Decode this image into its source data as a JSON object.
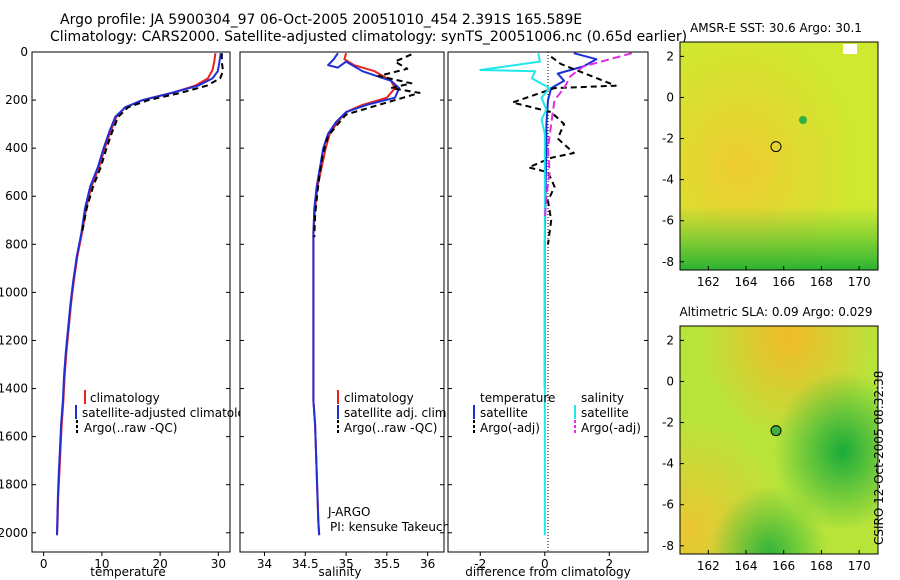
{
  "title_line1": "Argo profile: JA 5900304_97 06-Oct-2005 20051010_454 2.391S 165.589E",
  "title_line2": "Climatology: CARS2000. Satellite-adjusted climatology: synTS_20051006.nc (0.65d earlier)",
  "stamp": "CSIRO 12-Oct-2005 08:32:38",
  "chart_data": [
    {
      "type": "line",
      "id": "temperature",
      "xlabel": "temperature",
      "ylabel": "",
      "xlim": [
        -2,
        32
      ],
      "ylim": [
        2080,
        0
      ],
      "xticks": [
        0,
        10,
        20,
        30
      ],
      "yticks": [
        0,
        200,
        400,
        600,
        800,
        1000,
        1200,
        1400,
        1600,
        1800,
        2000
      ],
      "legend": [
        "climatology",
        "satellite-adjusted climatology",
        "Argo(..raw -QC)"
      ],
      "series": [
        {
          "name": "climatology",
          "color": "#e8221c",
          "dash": "",
          "points": [
            [
              29.5,
              5
            ],
            [
              29.3,
              40
            ],
            [
              29.0,
              75
            ],
            [
              28.2,
              110
            ],
            [
              26,
              140
            ],
            [
              22,
              170
            ],
            [
              17,
              200
            ],
            [
              14,
              230
            ],
            [
              12.5,
              270
            ],
            [
              11.5,
              330
            ],
            [
              10.5,
              400
            ],
            [
              9.5,
              480
            ],
            [
              8.2,
              560
            ],
            [
              7.3,
              650
            ],
            [
              6.6,
              750
            ],
            [
              5.8,
              850
            ],
            [
              5.2,
              950
            ],
            [
              4.7,
              1050
            ],
            [
              4.3,
              1150
            ],
            [
              3.9,
              1250
            ],
            [
              3.6,
              1350
            ],
            [
              3.4,
              1450
            ],
            [
              3.1,
              1550
            ],
            [
              2.9,
              1650
            ],
            [
              2.7,
              1750
            ],
            [
              2.5,
              1850
            ],
            [
              2.4,
              1950
            ],
            [
              2.3,
              2010
            ]
          ]
        },
        {
          "name": "satellite-adjusted climatology",
          "color": "#1f2fd6",
          "dash": "",
          "points": [
            [
              30.4,
              5
            ],
            [
              30.2,
              40
            ],
            [
              29.9,
              80
            ],
            [
              29.0,
              110
            ],
            [
              26.5,
              140
            ],
            [
              22,
              170
            ],
            [
              17,
              200
            ],
            [
              14,
              230
            ],
            [
              12.3,
              270
            ],
            [
              11.3,
              330
            ],
            [
              10.3,
              400
            ],
            [
              9.3,
              480
            ],
            [
              8.0,
              560
            ],
            [
              7.1,
              650
            ],
            [
              6.5,
              750
            ],
            [
              5.7,
              850
            ],
            [
              5.1,
              950
            ],
            [
              4.6,
              1050
            ],
            [
              4.2,
              1150
            ],
            [
              3.8,
              1250
            ],
            [
              3.5,
              1350
            ],
            [
              3.3,
              1450
            ],
            [
              3.0,
              1550
            ],
            [
              2.8,
              1650
            ],
            [
              2.6,
              1750
            ],
            [
              2.45,
              1850
            ],
            [
              2.35,
              1950
            ],
            [
              2.3,
              2010
            ]
          ]
        },
        {
          "name": "Argo(..raw -QC)",
          "color": "#000000",
          "dash": "6,4",
          "points": [
            [
              30.6,
              5
            ],
            [
              30.6,
              40
            ],
            [
              30.8,
              80
            ],
            [
              30.3,
              110
            ],
            [
              28,
              140
            ],
            [
              23.5,
              170
            ],
            [
              18,
              200
            ],
            [
              14.5,
              230
            ],
            [
              12.8,
              270
            ],
            [
              11.8,
              330
            ],
            [
              10.8,
              400
            ],
            [
              9.8,
              480
            ],
            [
              8.5,
              560
            ],
            [
              7.4,
              650
            ],
            [
              6.6,
              750
            ]
          ]
        }
      ]
    },
    {
      "type": "line",
      "id": "salinity",
      "xlabel": "salinity",
      "xlim": [
        33.7,
        36.2
      ],
      "ylim": [
        2080,
        0
      ],
      "xticks": [
        34,
        34.5,
        35,
        35.5,
        36
      ],
      "legend": [
        "climatology",
        "satellite adj. clim.",
        "Argo(..raw -QC)"
      ],
      "annotation": [
        "J-ARGO",
        "PI: kensuke Takeuchi"
      ],
      "series": [
        {
          "name": "climatology",
          "color": "#e8221c",
          "dash": "",
          "points": [
            [
              35.0,
              5
            ],
            [
              34.98,
              30
            ],
            [
              35.1,
              55
            ],
            [
              35.35,
              80
            ],
            [
              35.55,
              120
            ],
            [
              35.6,
              150
            ],
            [
              35.5,
              190
            ],
            [
              35.2,
              220
            ],
            [
              35.0,
              250
            ],
            [
              34.9,
              290
            ],
            [
              34.8,
              340
            ],
            [
              34.75,
              400
            ],
            [
              34.7,
              480
            ],
            [
              34.65,
              560
            ],
            [
              34.62,
              650
            ],
            [
              34.6,
              750
            ],
            [
              34.6,
              850
            ],
            [
              34.6,
              950
            ],
            [
              34.6,
              1050
            ],
            [
              34.6,
              1150
            ],
            [
              34.6,
              1250
            ],
            [
              34.6,
              1350
            ],
            [
              34.6,
              1450
            ],
            [
              34.62,
              1550
            ],
            [
              34.63,
              1650
            ],
            [
              34.64,
              1750
            ],
            [
              34.65,
              1850
            ],
            [
              34.66,
              1950
            ],
            [
              34.67,
              2010
            ]
          ]
        },
        {
          "name": "satellite adj. clim.",
          "color": "#1f2fd6",
          "dash": "",
          "points": [
            [
              34.9,
              5
            ],
            [
              34.85,
              30
            ],
            [
              34.78,
              55
            ],
            [
              34.9,
              65
            ],
            [
              35.0,
              40
            ],
            [
              35.2,
              80
            ],
            [
              35.55,
              120
            ],
            [
              35.65,
              150
            ],
            [
              35.6,
              190
            ],
            [
              35.25,
              220
            ],
            [
              35.0,
              250
            ],
            [
              34.88,
              290
            ],
            [
              34.78,
              340
            ],
            [
              34.72,
              400
            ],
            [
              34.68,
              480
            ],
            [
              34.64,
              560
            ],
            [
              34.61,
              650
            ],
            [
              34.6,
              750
            ],
            [
              34.6,
              850
            ],
            [
              34.6,
              950
            ],
            [
              34.6,
              1050
            ],
            [
              34.6,
              1150
            ],
            [
              34.6,
              1250
            ],
            [
              34.6,
              1350
            ],
            [
              34.6,
              1450
            ],
            [
              34.62,
              1550
            ],
            [
              34.63,
              1650
            ],
            [
              34.64,
              1750
            ],
            [
              34.65,
              1850
            ],
            [
              34.66,
              1950
            ],
            [
              34.67,
              2010
            ]
          ]
        },
        {
          "name": "Argo(..raw -QC)",
          "color": "#000000",
          "dash": "6,4",
          "points": [
            [
              35.8,
              10
            ],
            [
              35.6,
              40
            ],
            [
              35.75,
              70
            ],
            [
              35.4,
              100
            ],
            [
              35.8,
              130
            ],
            [
              35.55,
              150
            ],
            [
              35.9,
              170
            ],
            [
              35.6,
              200
            ],
            [
              35.3,
              230
            ],
            [
              35.0,
              260
            ],
            [
              34.9,
              300
            ],
            [
              34.78,
              350
            ],
            [
              34.72,
              420
            ],
            [
              34.68,
              500
            ],
            [
              34.65,
              580
            ],
            [
              34.62,
              680
            ],
            [
              34.61,
              770
            ]
          ]
        }
      ]
    },
    {
      "type": "line",
      "id": "difference",
      "xlabel": "difference from climatology",
      "xlim": [
        -3,
        3.2
      ],
      "ylim": [
        2080,
        0
      ],
      "xticks": [
        -2,
        0,
        2
      ],
      "legend_temperature": [
        "temperature",
        "satellite",
        "Argo(-adj)"
      ],
      "legend_salinity": [
        "salinity",
        "satellite",
        "Argo(-adj)"
      ],
      "series": [
        {
          "name": "temperature satellite",
          "color": "#1f2fd6",
          "dash": "",
          "points": [
            [
              0.9,
              5
            ],
            [
              1.6,
              30
            ],
            [
              1.2,
              60
            ],
            [
              0.4,
              90
            ],
            [
              0.6,
              120
            ],
            [
              0.2,
              150
            ],
            [
              0.1,
              200
            ],
            [
              0.05,
              300
            ],
            [
              0.05,
              400
            ],
            [
              0.02,
              600
            ],
            [
              0.0,
              800
            ],
            [
              0.0,
              1000
            ],
            [
              0.0,
              1400
            ]
          ]
        },
        {
          "name": "temperature Argo(-adj)",
          "color": "#000000",
          "dash": "6,4",
          "points": [
            [
              0.2,
              20
            ],
            [
              0.5,
              50
            ],
            [
              2.2,
              140
            ],
            [
              0.3,
              150
            ],
            [
              -1.0,
              210
            ],
            [
              -0.4,
              230
            ],
            [
              0.2,
              250
            ],
            [
              0.6,
              300
            ],
            [
              0.4,
              360
            ],
            [
              0.9,
              420
            ],
            [
              0.2,
              440
            ],
            [
              -0.5,
              480
            ],
            [
              0.1,
              500
            ],
            [
              0.3,
              560
            ],
            [
              0.1,
              620
            ],
            [
              0.2,
              700
            ],
            [
              0.1,
              800
            ]
          ]
        },
        {
          "name": "salinity satellite",
          "color": "#1fe8e8",
          "dash": "",
          "points": [
            [
              -0.2,
              5
            ],
            [
              -0.15,
              40
            ],
            [
              -2.0,
              75
            ],
            [
              -0.3,
              80
            ],
            [
              -0.4,
              110
            ],
            [
              0.15,
              150
            ],
            [
              -0.1,
              190
            ],
            [
              0.05,
              240
            ],
            [
              -0.1,
              280
            ],
            [
              0.0,
              340
            ],
            [
              0.0,
              500
            ],
            [
              0.0,
              700
            ],
            [
              0.0,
              1000
            ],
            [
              0.0,
              1500
            ],
            [
              0.0,
              2010
            ]
          ]
        },
        {
          "name": "salinity Argo(-adj)",
          "color": "#e02ee0",
          "dash": "8,4",
          "points": [
            [
              2.7,
              5
            ],
            [
              1.2,
              60
            ],
            [
              0.8,
              100
            ],
            [
              0.6,
              150
            ],
            [
              0.3,
              200
            ],
            [
              0.2,
              300
            ],
            [
              0.1,
              400
            ],
            [
              0.15,
              500
            ],
            [
              0.05,
              600
            ],
            [
              0.0,
              700
            ]
          ]
        }
      ]
    },
    {
      "type": "heatmap",
      "id": "sst-map",
      "title": "AMSR-E SST: 30.6 Argo: 30.1",
      "xlim": [
        160.5,
        171
      ],
      "ylim": [
        -8.4,
        2.7
      ],
      "xticks": [
        162,
        164,
        166,
        168,
        170
      ],
      "yticks": [
        2,
        0,
        -2,
        -4,
        -6,
        -8
      ],
      "argo_position": [
        165.589,
        -2.391
      ]
    },
    {
      "type": "heatmap",
      "id": "sla-map",
      "title": "Altimetric SLA: 0.09 Argo: 0.029",
      "xlim": [
        160.5,
        171
      ],
      "ylim": [
        -8.4,
        2.7
      ],
      "xticks": [
        162,
        164,
        166,
        168,
        170
      ],
      "yticks": [
        2,
        0,
        -2,
        -4,
        -6,
        -8
      ],
      "argo_position": [
        165.589,
        -2.391
      ]
    }
  ]
}
